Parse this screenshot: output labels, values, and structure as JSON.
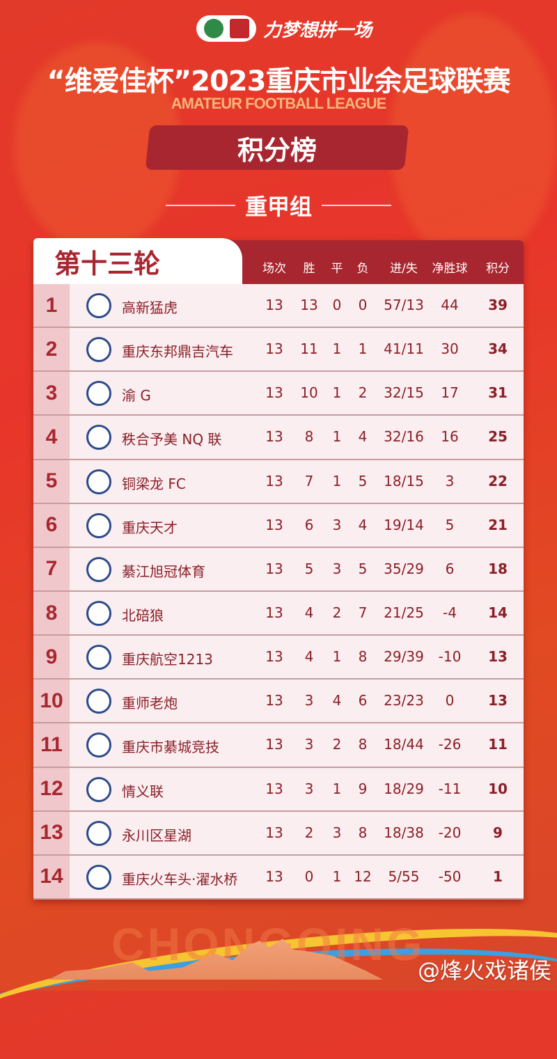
{
  "header": {
    "slogan": "力梦想拼一场",
    "title": "“维爱佳杯”2023重庆市业余足球联赛",
    "subtitle": "AMATEUR FOOTBALL LEAGUE",
    "banner": "积分榜",
    "group": "重甲组"
  },
  "table": {
    "round": "第十三轮",
    "columns": [
      "场次",
      "胜",
      "平",
      "负",
      "进/失",
      "净胜球",
      "积分"
    ],
    "rows": [
      {
        "rank": "1",
        "team": "高新猛虎",
        "p": "13",
        "w": "13",
        "d": "0",
        "l": "0",
        "gf_ga": "57/13",
        "gd": "44",
        "pts": "39"
      },
      {
        "rank": "2",
        "team": "重庆东邦鼎吉汽车",
        "p": "13",
        "w": "11",
        "d": "1",
        "l": "1",
        "gf_ga": "41/11",
        "gd": "30",
        "pts": "34"
      },
      {
        "rank": "3",
        "team": "渝 G",
        "p": "13",
        "w": "10",
        "d": "1",
        "l": "2",
        "gf_ga": "32/15",
        "gd": "17",
        "pts": "31"
      },
      {
        "rank": "4",
        "team": "秩合予美 NQ 联",
        "p": "13",
        "w": "8",
        "d": "1",
        "l": "4",
        "gf_ga": "32/16",
        "gd": "16",
        "pts": "25"
      },
      {
        "rank": "5",
        "team": "铜梁龙 FC",
        "p": "13",
        "w": "7",
        "d": "1",
        "l": "5",
        "gf_ga": "18/15",
        "gd": "3",
        "pts": "22"
      },
      {
        "rank": "6",
        "team": "重庆天才",
        "p": "13",
        "w": "6",
        "d": "3",
        "l": "4",
        "gf_ga": "19/14",
        "gd": "5",
        "pts": "21"
      },
      {
        "rank": "7",
        "team": "綦江旭冠体育",
        "p": "13",
        "w": "5",
        "d": "3",
        "l": "5",
        "gf_ga": "35/29",
        "gd": "6",
        "pts": "18"
      },
      {
        "rank": "8",
        "team": "北碚狼",
        "p": "13",
        "w": "4",
        "d": "2",
        "l": "7",
        "gf_ga": "21/25",
        "gd": "-4",
        "pts": "14"
      },
      {
        "rank": "9",
        "team": "重庆航空1213",
        "p": "13",
        "w": "4",
        "d": "1",
        "l": "8",
        "gf_ga": "29/39",
        "gd": "-10",
        "pts": "13"
      },
      {
        "rank": "10",
        "team": "重师老炮",
        "p": "13",
        "w": "3",
        "d": "4",
        "l": "6",
        "gf_ga": "23/23",
        "gd": "0",
        "pts": "13"
      },
      {
        "rank": "11",
        "team": "重庆市綦城竞技",
        "p": "13",
        "w": "3",
        "d": "2",
        "l": "8",
        "gf_ga": "18/44",
        "gd": "-26",
        "pts": "11"
      },
      {
        "rank": "12",
        "team": "情义联",
        "p": "13",
        "w": "3",
        "d": "1",
        "l": "9",
        "gf_ga": "18/29",
        "gd": "-11",
        "pts": "10"
      },
      {
        "rank": "13",
        "team": "永川区星湖",
        "p": "13",
        "w": "2",
        "d": "3",
        "l": "8",
        "gf_ga": "18/38",
        "gd": "-20",
        "pts": "9"
      },
      {
        "rank": "14",
        "team": "重庆火车头·濯水桥",
        "p": "13",
        "w": "0",
        "d": "1",
        "l": "12",
        "gf_ga": "5/55",
        "gd": "-50",
        "pts": "1"
      }
    ]
  },
  "footer": {
    "city": "CHONGQING",
    "watermark": "@烽火戏诸侯"
  },
  "colors": {
    "background": "#e8352b",
    "accent": "#a8262f",
    "row": "#fbeef0",
    "rank_cell": "#f0c8cb"
  }
}
